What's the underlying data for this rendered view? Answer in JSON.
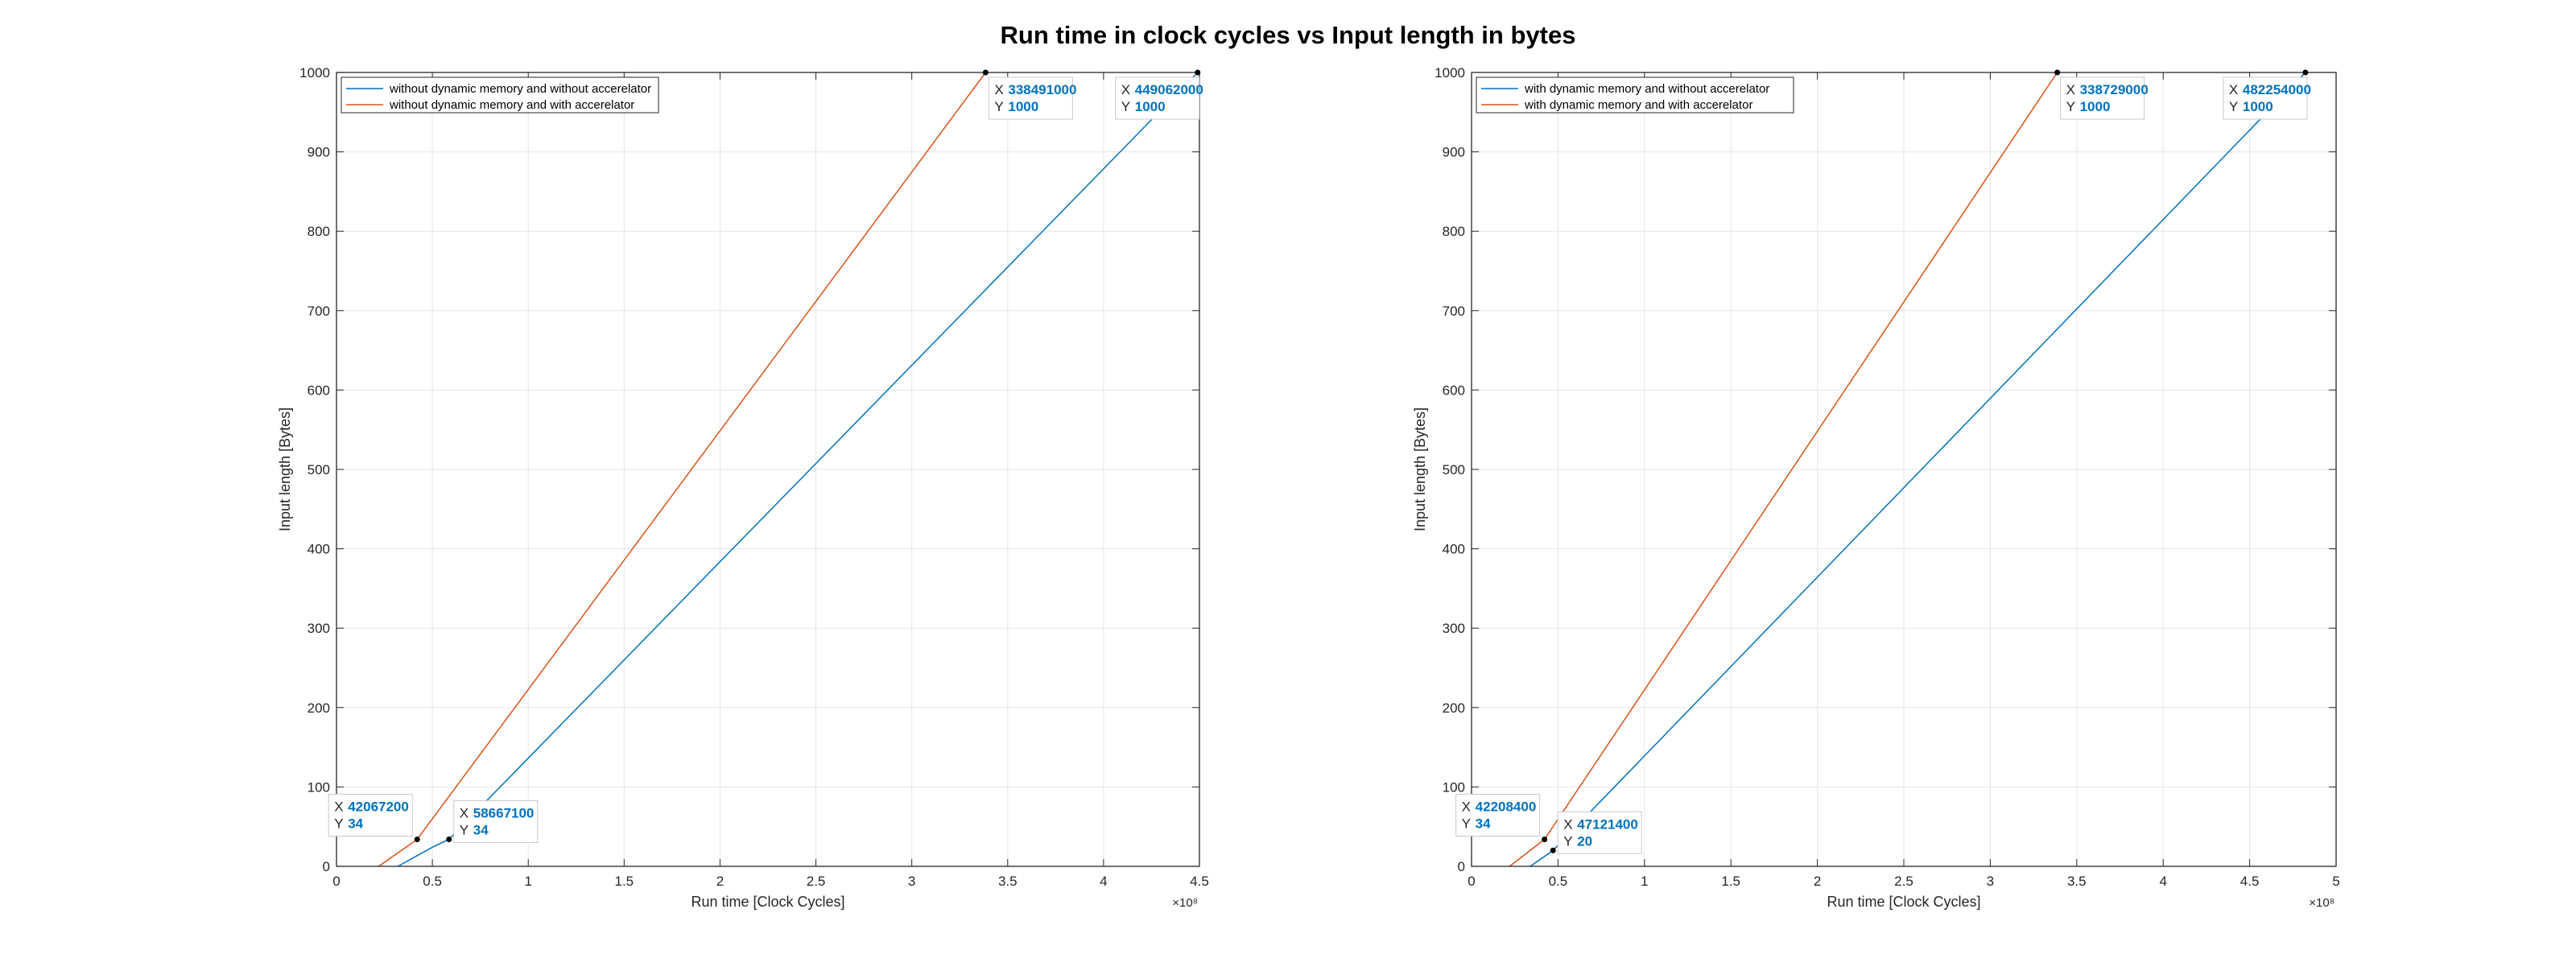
{
  "figure": {
    "title": "Run time in clock cycles vs Input length in bytes"
  },
  "colors": {
    "series1": "#0072BD",
    "series2": "#D95319",
    "grid": "#e6e6e6",
    "axis": "#262626",
    "datatip_value": "#0072BD"
  },
  "chart_data": [
    {
      "type": "line",
      "title": "",
      "xlabel": "Run time [Clock Cycles]",
      "ylabel": "Input length [Bytes]",
      "x_exponent_label": "×10⁸",
      "x_scale": 100000000,
      "xlim": [
        0,
        4.5
      ],
      "ylim": [
        0,
        1000
      ],
      "xticks": [
        0,
        0.5,
        1,
        1.5,
        2,
        2.5,
        3,
        3.5,
        4,
        4.5
      ],
      "xtick_labels": [
        "0",
        "0.5",
        "1",
        "1.5",
        "2",
        "2.5",
        "3",
        "3.5",
        "4",
        "4.5"
      ],
      "yticks": [
        0,
        100,
        200,
        300,
        400,
        500,
        600,
        700,
        800,
        900,
        1000
      ],
      "grid": true,
      "legend_position": "top-left",
      "series": [
        {
          "name": "without dynamic memory and without accerelator",
          "x": [
            32000000,
            50000000,
            58667100,
            449062000
          ],
          "y": [
            0,
            24,
            34,
            1000
          ]
        },
        {
          "name": "without dynamic memory and with accerelator",
          "x": [
            22000000,
            42067200,
            338491000
          ],
          "y": [
            0,
            34,
            1000
          ]
        }
      ],
      "datatips": [
        {
          "series": 1,
          "x": 42067200,
          "y": 34,
          "x_label": "X",
          "y_label": "Y",
          "x_text": "42067200",
          "y_text": "34",
          "placement": "left"
        },
        {
          "series": 0,
          "x": 58667100,
          "y": 34,
          "x_label": "X",
          "y_label": "Y",
          "x_text": "58667100",
          "y_text": "34",
          "placement": "right"
        },
        {
          "series": 1,
          "x": 338491000,
          "y": 1000,
          "x_label": "X",
          "y_label": "Y",
          "x_text": "338491000",
          "y_text": "1000",
          "placement": "below-right"
        },
        {
          "series": 0,
          "x": 449062000,
          "y": 1000,
          "x_label": "X",
          "y_label": "Y",
          "x_text": "449062000",
          "y_text": "1000",
          "placement": "below-left"
        }
      ]
    },
    {
      "type": "line",
      "title": "",
      "xlabel": "Run time [Clock Cycles]",
      "ylabel": "Input length [Bytes]",
      "x_exponent_label": "×10⁸",
      "x_scale": 100000000,
      "xlim": [
        0,
        5
      ],
      "ylim": [
        0,
        1000
      ],
      "xticks": [
        0,
        0.5,
        1,
        1.5,
        2,
        2.5,
        3,
        3.5,
        4,
        4.5,
        5
      ],
      "xtick_labels": [
        "0",
        "0.5",
        "1",
        "1.5",
        "2",
        "2.5",
        "3",
        "3.5",
        "4",
        "4.5",
        "5"
      ],
      "yticks": [
        0,
        100,
        200,
        300,
        400,
        500,
        600,
        700,
        800,
        900,
        1000
      ],
      "grid": true,
      "legend_position": "top-left",
      "series": [
        {
          "name": "with dynamic memory and without accerelator",
          "x": [
            34000000,
            47121400,
            482254000
          ],
          "y": [
            0,
            20,
            1000
          ]
        },
        {
          "name": "with dynamic memory and with accerelator",
          "x": [
            22000000,
            42208400,
            338729000
          ],
          "y": [
            0,
            34,
            1000
          ]
        }
      ],
      "datatips": [
        {
          "series": 1,
          "x": 42208400,
          "y": 34,
          "x_label": "X",
          "y_label": "Y",
          "x_text": "42208400",
          "y_text": "34",
          "placement": "left"
        },
        {
          "series": 0,
          "x": 47121400,
          "y": 20,
          "x_label": "X",
          "y_label": "Y",
          "x_text": "47121400",
          "y_text": "20",
          "placement": "right"
        },
        {
          "series": 1,
          "x": 338729000,
          "y": 1000,
          "x_label": "X",
          "y_label": "Y",
          "x_text": "338729000",
          "y_text": "1000",
          "placement": "below-right"
        },
        {
          "series": 0,
          "x": 482254000,
          "y": 1000,
          "x_label": "X",
          "y_label": "Y",
          "x_text": "482254000",
          "y_text": "1000",
          "placement": "below-left"
        }
      ]
    }
  ]
}
